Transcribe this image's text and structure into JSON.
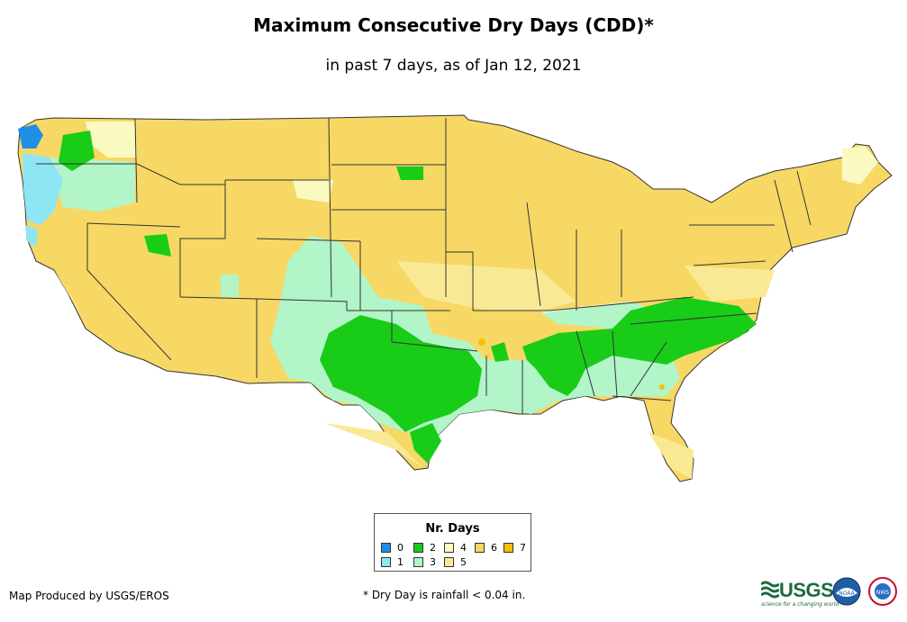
{
  "title": "Maximum Consecutive Dry Days (CDD)*",
  "subtitle": "in past 7 days, as of Jan 12, 2021",
  "legend": {
    "title": "Nr. Days",
    "items": [
      {
        "label": "0",
        "color": "#1e90e8"
      },
      {
        "label": "1",
        "color": "#8ee6f5"
      },
      {
        "label": "2",
        "color": "#18cc18"
      },
      {
        "label": "3",
        "color": "#b2f5c8"
      },
      {
        "label": "4",
        "color": "#fafac0"
      },
      {
        "label": "5",
        "color": "#fae994"
      },
      {
        "label": "6",
        "color": "#f7d865"
      },
      {
        "label": "7",
        "color": "#f5c000"
      }
    ]
  },
  "credit": "Map Produced by USGS/EROS",
  "footnote": "* Dry Day is rainfall < 0.04 in.",
  "logos": {
    "usgs_text": "USGS",
    "usgs_tagline": "science for a changing world",
    "noaa_text": "NOAA",
    "nws_text": "NWS"
  }
}
